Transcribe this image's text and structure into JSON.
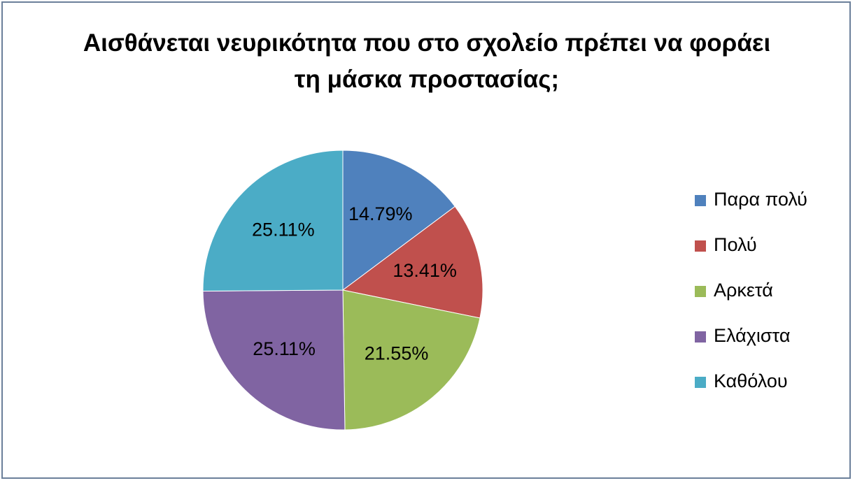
{
  "chart_data": {
    "type": "pie",
    "title": "Αισθάνεται νευρικότητα που στο σχολείο πρέπει να φοράει τη μάσκα προστασίας;",
    "categories": [
      "Παρα πολύ",
      "Πολύ",
      "Αρκετά",
      "Ελάχιστα",
      "Καθόλου"
    ],
    "values": [
      14.79,
      13.41,
      21.55,
      25.11,
      25.11
    ],
    "value_labels": [
      "14.79%",
      "13.41%",
      "21.55%",
      "25.11%",
      "25.11%"
    ],
    "colors": [
      "#4f81bd",
      "#c0504d",
      "#9bbb59",
      "#8064a2",
      "#4bacc6"
    ],
    "legend": "right"
  }
}
